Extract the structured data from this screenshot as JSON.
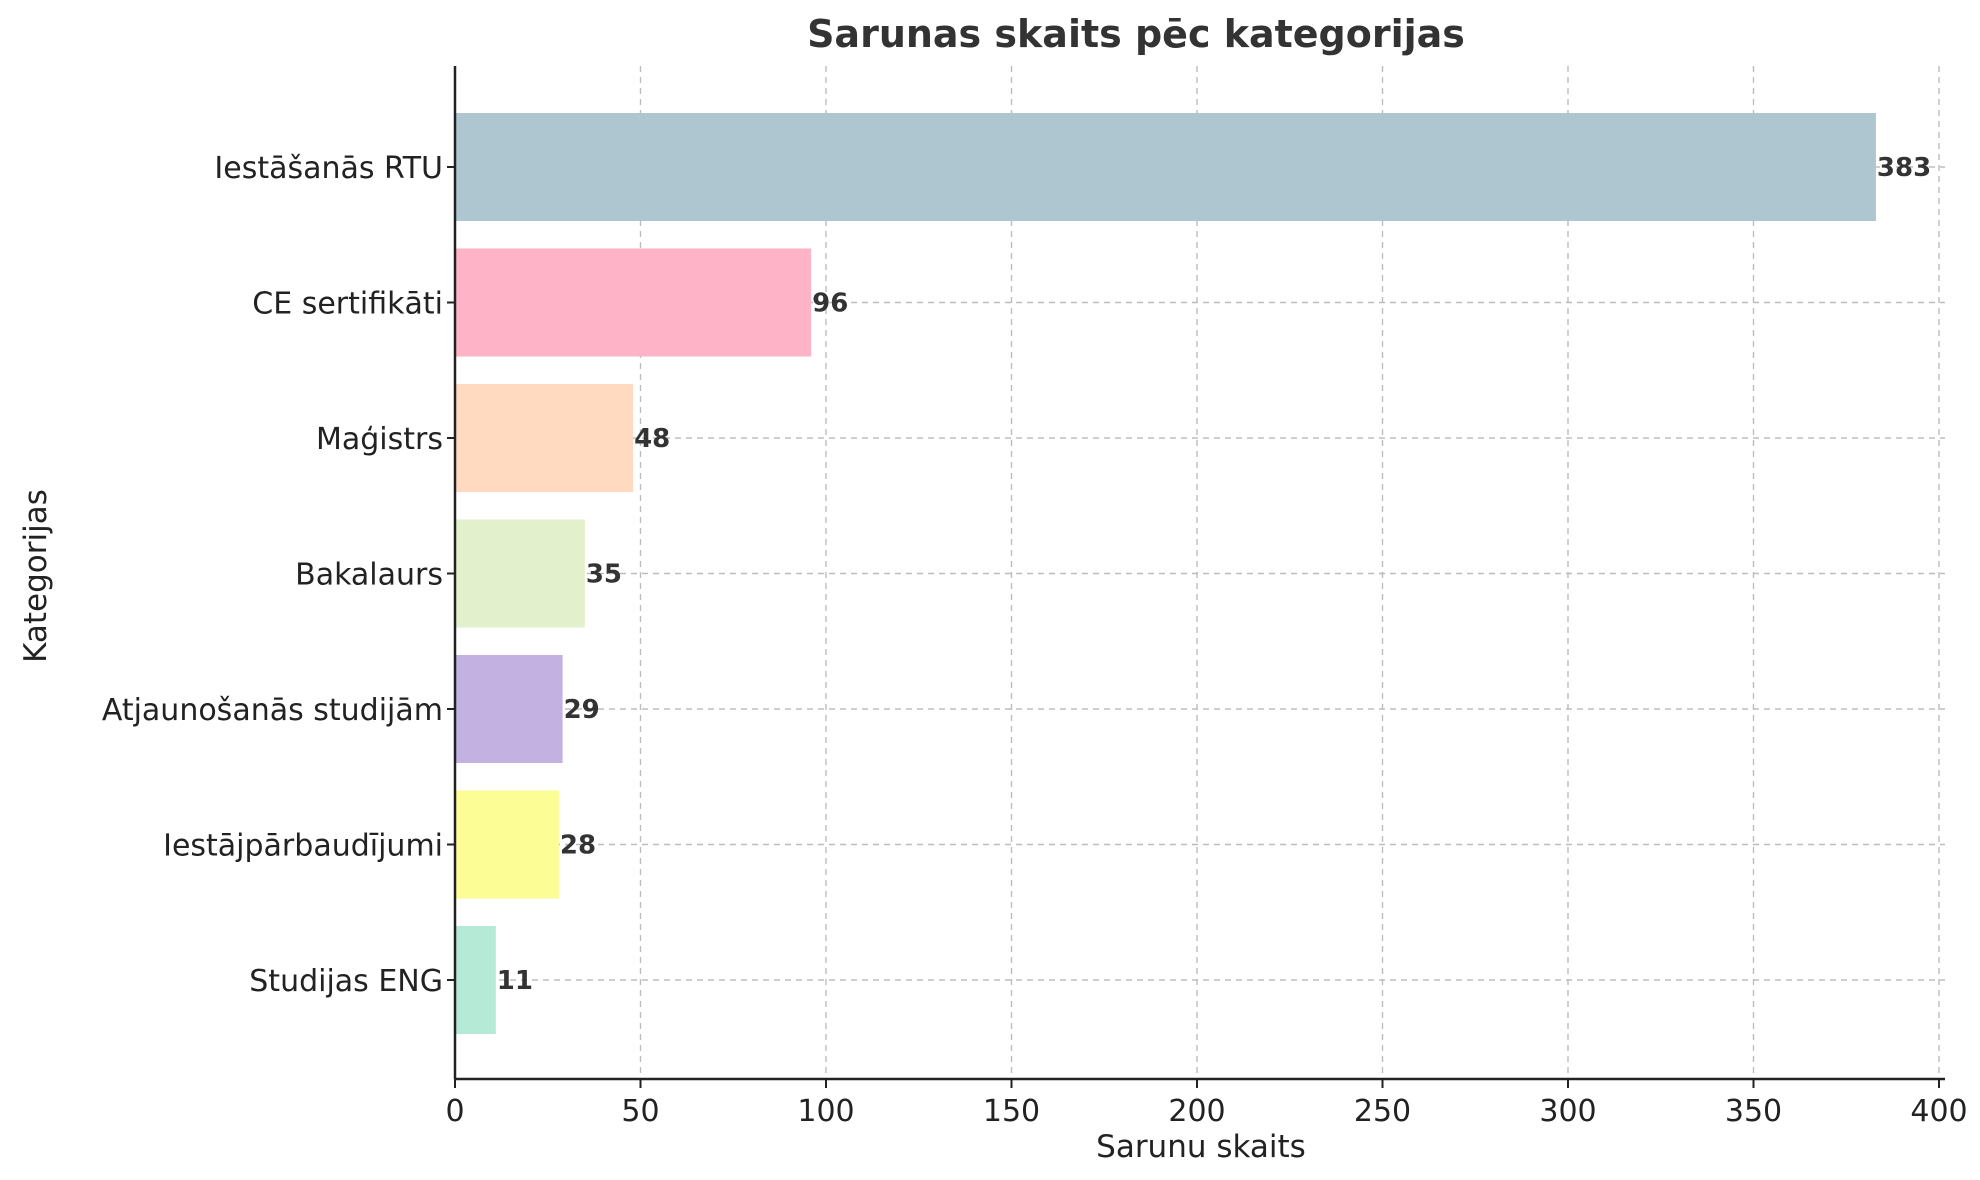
{
  "chart_data": {
    "type": "bar",
    "orientation": "horizontal",
    "title": "Sarunas skaits pēc kategorijas",
    "xlabel": "Sarunu skaits",
    "ylabel": "Kategorijas",
    "xlim": [
      0,
      400
    ],
    "x_ticks": [
      0,
      50,
      100,
      150,
      200,
      250,
      300,
      350,
      400
    ],
    "grid": true,
    "categories": [
      "Iestāšanās RTU",
      "CE sertifikāti",
      "Maģistrs",
      "Bakalaurs",
      "Atjaunošanās studijām",
      "Iestājpārbaudījumi",
      "Studijas ENG"
    ],
    "values": [
      383,
      96,
      48,
      35,
      29,
      28,
      11
    ],
    "colors": [
      "#aec6cf",
      "#ffb3c6",
      "#ffdac1",
      "#e2f0cb",
      "#c3b1e1",
      "#fdfd96",
      "#b5ead7"
    ]
  }
}
